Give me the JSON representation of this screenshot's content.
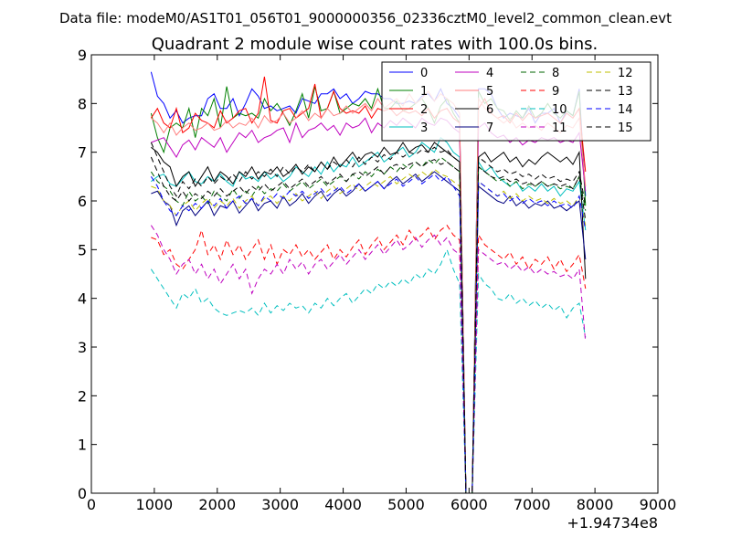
{
  "file_label": "Data file: modeM0/AS1T01_056T01_9000000356_02336cztM0_level2_common_clean.evt",
  "chart_data": {
    "type": "line",
    "title": "Quadrant 2 module wise count rates with 100.0s bins.",
    "xlabel": "",
    "ylabel": "",
    "x_offset_label": "+1.94734e8",
    "xlim": [
      0,
      9000
    ],
    "ylim": [
      0,
      9
    ],
    "x_ticks": [
      "0",
      "1000",
      "2000",
      "3000",
      "4000",
      "5000",
      "6000",
      "7000",
      "8000",
      "9000"
    ],
    "y_ticks": [
      "0",
      "1",
      "2",
      "3",
      "4",
      "5",
      "6",
      "7",
      "8",
      "9"
    ],
    "x_start": 950,
    "x_step": 100,
    "series": [
      {
        "name": "0",
        "color": "#0000ff",
        "dash": "solid",
        "values": [
          8.65,
          8.15,
          8.0,
          7.7,
          7.85,
          7.6,
          7.7,
          7.75,
          7.75,
          8.1,
          8.2,
          7.9,
          7.9,
          8.1,
          7.75,
          8.0,
          8.3,
          8.15,
          7.9,
          7.95,
          7.85,
          7.9,
          7.95,
          7.8,
          8.1,
          8.05,
          8.0,
          8.2,
          8.2,
          8.3,
          8.1,
          8.2,
          8.0,
          8.1,
          8.25,
          8.2,
          8.2,
          8.1,
          8.1,
          8.0,
          8.0,
          8.05,
          8.0,
          8.15,
          8.2,
          8.05,
          8.3,
          8.0,
          7.9,
          7.7,
          0.0,
          0.0,
          8.3,
          8.3,
          8.2,
          7.9,
          7.7,
          7.8,
          7.75,
          7.7,
          7.9,
          7.6,
          7.8,
          7.8,
          7.9,
          7.6,
          7.85,
          7.75,
          8.3,
          6.1
        ]
      },
      {
        "name": "1",
        "color": "#008000",
        "dash": "solid",
        "values": [
          7.8,
          7.3,
          7.0,
          7.5,
          7.6,
          7.5,
          7.9,
          7.3,
          7.9,
          7.75,
          8.1,
          7.5,
          8.35,
          7.7,
          7.8,
          7.75,
          7.8,
          7.7,
          8.1,
          7.85,
          8.0,
          7.8,
          7.55,
          7.85,
          8.2,
          7.7,
          8.35,
          7.85,
          7.9,
          8.25,
          7.8,
          7.9,
          8.0,
          7.95,
          8.1,
          7.9,
          8.3,
          7.9,
          7.9,
          8.05,
          7.85,
          7.9,
          8.0,
          8.1,
          7.9,
          7.6,
          7.95,
          8.1,
          7.8,
          7.6,
          0.0,
          0.0,
          8.25,
          8.0,
          8.1,
          7.9,
          7.85,
          7.65,
          7.85,
          7.7,
          7.95,
          7.7,
          7.8,
          8.0,
          7.8,
          7.7,
          7.85,
          7.75,
          8.25,
          5.9
        ]
      },
      {
        "name": "2",
        "color": "#ff0000",
        "dash": "solid",
        "values": [
          7.7,
          7.9,
          7.6,
          7.5,
          7.9,
          7.4,
          7.5,
          7.8,
          7.65,
          7.6,
          7.5,
          7.85,
          7.6,
          7.7,
          7.85,
          7.9,
          7.6,
          7.8,
          8.55,
          7.65,
          7.6,
          7.85,
          7.9,
          7.7,
          7.8,
          7.9,
          8.4,
          7.7,
          7.9,
          8.25,
          7.9,
          7.8,
          7.85,
          7.8,
          7.95,
          7.7,
          7.9,
          7.85,
          7.9,
          7.75,
          7.85,
          7.8,
          7.85,
          7.75,
          7.9,
          7.7,
          7.85,
          7.9,
          7.7,
          7.6,
          0.0,
          0.0,
          7.9,
          8.1,
          7.8,
          7.7,
          7.75,
          7.6,
          7.8,
          7.65,
          7.8,
          7.7,
          7.75,
          7.8,
          7.7,
          7.6,
          7.8,
          7.7,
          7.9,
          6.6
        ]
      },
      {
        "name": "3",
        "color": "#00bfbf",
        "dash": "solid",
        "values": [
          6.4,
          6.5,
          6.55,
          6.35,
          6.3,
          6.45,
          6.6,
          6.4,
          6.35,
          6.5,
          6.4,
          6.55,
          6.4,
          6.3,
          6.6,
          6.45,
          6.5,
          6.4,
          6.6,
          6.45,
          6.55,
          6.4,
          6.5,
          6.7,
          6.6,
          6.5,
          6.7,
          6.55,
          6.8,
          6.6,
          6.75,
          6.7,
          6.9,
          6.7,
          6.8,
          6.9,
          7.0,
          6.8,
          6.9,
          7.0,
          7.1,
          6.9,
          7.0,
          7.2,
          7.1,
          7.0,
          7.3,
          7.2,
          7.0,
          6.9,
          0.0,
          0.0,
          6.8,
          6.6,
          6.7,
          6.5,
          6.4,
          6.3,
          6.4,
          6.2,
          6.3,
          6.2,
          6.35,
          6.2,
          6.3,
          6.1,
          6.25,
          6.2,
          6.4,
          5.4
        ]
      },
      {
        "name": "4",
        "color": "#bf00bf",
        "dash": "solid",
        "values": [
          7.2,
          7.25,
          7.3,
          7.1,
          6.9,
          7.15,
          7.25,
          7.05,
          7.3,
          7.2,
          7.1,
          7.3,
          7.0,
          7.2,
          7.4,
          7.3,
          7.45,
          7.2,
          7.3,
          7.35,
          7.45,
          7.5,
          7.2,
          7.6,
          7.3,
          7.45,
          7.5,
          7.6,
          7.45,
          7.55,
          7.35,
          7.6,
          7.5,
          7.55,
          7.7,
          7.4,
          7.6,
          7.5,
          7.65,
          7.55,
          7.7,
          7.6,
          7.5,
          7.7,
          7.6,
          7.55,
          7.7,
          7.65,
          7.5,
          7.4,
          0.0,
          0.0,
          7.5,
          7.6,
          7.4,
          7.3,
          7.35,
          7.2,
          7.3,
          7.15,
          7.25,
          7.2,
          7.3,
          7.25,
          7.3,
          7.2,
          7.25,
          7.2,
          7.4,
          6.2
        ]
      },
      {
        "name": "5",
        "color": "#ff7f7f",
        "dash": "solid",
        "values": [
          7.7,
          7.6,
          7.4,
          7.6,
          7.35,
          7.5,
          7.6,
          7.45,
          7.5,
          7.6,
          7.45,
          7.5,
          7.65,
          7.5,
          7.6,
          7.55,
          7.7,
          7.5,
          7.75,
          7.6,
          7.65,
          7.8,
          7.6,
          7.7,
          7.85,
          7.65,
          7.8,
          7.7,
          7.9,
          7.75,
          7.8,
          7.95,
          7.8,
          7.9,
          8.0,
          7.85,
          8.1,
          7.9,
          8.0,
          8.1,
          7.95,
          8.2,
          8.0,
          8.1,
          8.25,
          8.05,
          8.2,
          8.1,
          8.0,
          7.8,
          0.0,
          0.0,
          8.1,
          7.9,
          7.8,
          7.7,
          7.6,
          7.7,
          7.5,
          7.6,
          7.5,
          7.55,
          7.45,
          7.6,
          7.5,
          7.4,
          7.55,
          7.5,
          7.7,
          6.3
        ]
      },
      {
        "name": "6",
        "color": "#000000",
        "dash": "solid",
        "values": [
          7.1,
          7.0,
          6.8,
          6.7,
          6.3,
          6.5,
          6.6,
          6.3,
          6.5,
          6.7,
          6.4,
          6.6,
          6.5,
          6.35,
          6.6,
          6.5,
          6.7,
          6.45,
          6.6,
          6.55,
          6.7,
          6.5,
          6.6,
          6.75,
          6.55,
          6.7,
          6.6,
          6.8,
          6.65,
          6.9,
          6.7,
          6.85,
          7.0,
          6.8,
          6.95,
          7.0,
          6.9,
          7.1,
          6.95,
          7.0,
          7.2,
          7.0,
          7.1,
          7.15,
          7.0,
          7.2,
          7.1,
          7.0,
          6.9,
          6.8,
          0.0,
          0.0,
          6.9,
          7.0,
          6.8,
          6.9,
          7.0,
          6.8,
          6.9,
          6.7,
          6.85,
          6.75,
          6.9,
          7.0,
          6.9,
          6.8,
          6.9,
          6.75,
          7.0,
          4.4
        ]
      },
      {
        "name": "7",
        "color": "#00007f",
        "dash": "solid",
        "values": [
          6.15,
          6.2,
          6.0,
          5.9,
          5.5,
          5.8,
          5.9,
          5.7,
          5.85,
          6.0,
          5.7,
          5.9,
          5.85,
          6.0,
          5.75,
          5.9,
          6.05,
          5.8,
          5.95,
          6.0,
          5.85,
          6.1,
          5.9,
          6.0,
          6.15,
          5.95,
          6.1,
          6.2,
          6.0,
          6.15,
          6.25,
          6.1,
          6.2,
          6.35,
          6.2,
          6.3,
          6.4,
          6.25,
          6.4,
          6.5,
          6.35,
          6.45,
          6.55,
          6.4,
          6.5,
          6.6,
          6.5,
          6.4,
          6.3,
          6.2,
          0.0,
          0.0,
          6.3,
          6.2,
          6.1,
          6.0,
          5.95,
          6.1,
          5.9,
          6.0,
          5.85,
          5.95,
          5.9,
          6.0,
          5.85,
          5.9,
          5.8,
          5.9,
          6.0,
          4.8
        ]
      },
      {
        "name": "8",
        "color": "#006400",
        "dash": "dashed",
        "values": [
          6.6,
          6.4,
          6.3,
          6.2,
          6.0,
          5.9,
          6.2,
          6.0,
          6.1,
          5.95,
          6.2,
          6.1,
          6.0,
          6.25,
          6.05,
          6.2,
          6.1,
          6.3,
          6.15,
          6.25,
          6.2,
          6.35,
          6.2,
          6.3,
          6.4,
          6.25,
          6.35,
          6.45,
          6.3,
          6.4,
          6.5,
          6.4,
          6.55,
          6.45,
          6.6,
          6.5,
          6.65,
          6.55,
          6.7,
          6.6,
          6.75,
          6.65,
          6.8,
          6.7,
          6.85,
          6.75,
          6.9,
          6.8,
          6.7,
          6.6,
          0.0,
          0.0,
          6.7,
          6.6,
          6.5,
          6.4,
          6.45,
          6.3,
          6.4,
          6.25,
          6.35,
          6.3,
          6.4,
          6.3,
          6.35,
          6.25,
          6.3,
          6.25,
          6.5,
          5.8
        ]
      },
      {
        "name": "9",
        "color": "#ff0000",
        "dash": "dashed",
        "values": [
          5.25,
          5.2,
          4.9,
          5.0,
          4.7,
          4.6,
          4.8,
          5.0,
          5.4,
          4.9,
          5.1,
          4.8,
          5.2,
          4.9,
          5.1,
          4.8,
          5.0,
          5.2,
          4.8,
          5.1,
          4.7,
          5.0,
          4.9,
          5.1,
          4.85,
          5.0,
          4.8,
          4.95,
          5.1,
          4.8,
          5.0,
          4.85,
          5.05,
          5.2,
          4.9,
          5.1,
          5.25,
          5.0,
          5.15,
          5.3,
          5.1,
          5.4,
          5.2,
          5.3,
          5.45,
          5.2,
          5.4,
          5.5,
          5.3,
          5.2,
          0.0,
          0.0,
          5.3,
          5.1,
          5.0,
          4.9,
          4.8,
          4.95,
          4.7,
          4.85,
          4.6,
          4.8,
          4.7,
          4.85,
          4.6,
          4.8,
          4.55,
          4.7,
          4.9,
          4.2
        ]
      },
      {
        "name": "10",
        "color": "#00bfbf",
        "dash": "dashed",
        "values": [
          4.6,
          4.4,
          4.2,
          4.0,
          3.8,
          4.1,
          4.0,
          4.2,
          3.9,
          4.0,
          3.8,
          3.7,
          3.65,
          3.7,
          3.75,
          3.7,
          3.8,
          3.65,
          3.9,
          3.7,
          3.85,
          3.75,
          3.9,
          3.8,
          3.85,
          3.7,
          3.9,
          3.8,
          4.0,
          3.85,
          4.0,
          4.1,
          3.9,
          4.05,
          4.2,
          4.1,
          4.3,
          4.2,
          4.35,
          4.25,
          4.4,
          4.3,
          4.5,
          4.4,
          4.6,
          4.5,
          4.7,
          5.0,
          4.6,
          4.3,
          0.0,
          0.0,
          4.5,
          4.3,
          4.2,
          4.0,
          3.95,
          4.1,
          3.9,
          4.0,
          3.85,
          3.95,
          3.8,
          3.9,
          3.75,
          3.85,
          3.6,
          3.8,
          3.9,
          3.2
        ]
      },
      {
        "name": "11",
        "color": "#bf00bf",
        "dash": "dashed",
        "values": [
          5.5,
          5.3,
          5.0,
          4.8,
          4.5,
          4.7,
          4.8,
          4.5,
          4.7,
          4.4,
          4.6,
          4.3,
          4.5,
          4.7,
          4.4,
          4.6,
          4.1,
          4.4,
          4.6,
          4.5,
          4.7,
          4.5,
          4.8,
          4.6,
          4.75,
          4.5,
          4.7,
          4.8,
          4.6,
          4.75,
          4.9,
          4.7,
          4.85,
          5.0,
          4.8,
          4.95,
          5.1,
          4.9,
          5.05,
          5.2,
          5.0,
          5.1,
          5.25,
          5.05,
          5.2,
          5.3,
          5.1,
          5.25,
          5.0,
          4.9,
          0.0,
          0.0,
          5.0,
          4.9,
          4.8,
          4.7,
          4.75,
          4.6,
          4.7,
          4.55,
          4.65,
          4.5,
          4.6,
          4.5,
          4.55,
          4.45,
          4.5,
          4.4,
          4.6,
          3.1
        ]
      },
      {
        "name": "12",
        "color": "#bfbf00",
        "dash": "dashed",
        "values": [
          6.3,
          6.25,
          6.0,
          5.9,
          5.7,
          5.9,
          6.0,
          5.8,
          5.95,
          6.05,
          5.85,
          6.0,
          5.9,
          6.05,
          5.85,
          6.0,
          6.1,
          5.9,
          6.05,
          6.1,
          5.95,
          6.1,
          6.0,
          6.15,
          6.0,
          6.1,
          6.2,
          6.05,
          6.2,
          6.3,
          6.15,
          6.25,
          6.35,
          6.2,
          6.3,
          6.4,
          6.3,
          6.4,
          6.5,
          6.35,
          6.45,
          6.55,
          6.45,
          6.6,
          6.5,
          6.65,
          6.55,
          6.5,
          6.4,
          6.3,
          0.0,
          0.0,
          6.4,
          6.3,
          6.2,
          6.1,
          6.2,
          6.05,
          6.15,
          6.0,
          6.1,
          6.0,
          6.05,
          5.95,
          6.05,
          5.95,
          6.0,
          5.9,
          6.1,
          5.5
        ]
      },
      {
        "name": "13",
        "color": "#000000",
        "dash": "dashed",
        "values": [
          6.9,
          6.6,
          6.3,
          6.1,
          6.0,
          6.2,
          6.0,
          6.15,
          6.05,
          6.2,
          6.1,
          6.25,
          6.1,
          6.2,
          6.3,
          6.15,
          6.3,
          6.2,
          6.35,
          6.2,
          6.3,
          6.4,
          6.25,
          6.35,
          6.45,
          6.3,
          6.4,
          6.5,
          6.35,
          6.45,
          6.55,
          6.4,
          6.55,
          6.6,
          6.5,
          6.6,
          6.7,
          6.55,
          6.7,
          6.75,
          6.65,
          6.75,
          6.8,
          6.7,
          6.8,
          6.85,
          6.75,
          6.8,
          6.7,
          6.6,
          0.0,
          0.0,
          6.7,
          6.6,
          6.5,
          6.45,
          6.5,
          6.4,
          6.45,
          6.35,
          6.4,
          6.3,
          6.4,
          6.3,
          6.35,
          6.3,
          6.35,
          6.25,
          6.5,
          5.6
        ]
      },
      {
        "name": "14",
        "color": "#0000ff",
        "dash": "dashed",
        "values": [
          6.5,
          6.3,
          6.0,
          5.8,
          5.7,
          5.9,
          5.8,
          5.95,
          5.85,
          6.0,
          5.9,
          6.05,
          5.85,
          6.0,
          6.1,
          5.95,
          6.05,
          5.9,
          6.1,
          6.0,
          6.15,
          6.05,
          6.2,
          6.1,
          6.2,
          6.05,
          6.15,
          6.25,
          6.1,
          6.2,
          6.3,
          6.15,
          6.25,
          6.35,
          6.2,
          6.3,
          6.4,
          6.25,
          6.35,
          6.45,
          6.3,
          6.4,
          6.5,
          6.35,
          6.45,
          6.55,
          6.4,
          6.5,
          6.3,
          6.1,
          0.0,
          0.0,
          6.4,
          6.3,
          6.2,
          6.1,
          6.15,
          6.0,
          6.1,
          5.95,
          6.05,
          5.95,
          6.0,
          5.9,
          6.0,
          5.9,
          5.95,
          5.85,
          6.1,
          5.4
        ]
      },
      {
        "name": "15",
        "color": "#000000",
        "dash": "dashed",
        "values": [
          7.2,
          6.9,
          6.6,
          6.3,
          6.1,
          6.4,
          6.25,
          6.45,
          6.3,
          6.5,
          6.35,
          6.5,
          6.4,
          6.55,
          6.4,
          6.6,
          6.45,
          6.6,
          6.5,
          6.65,
          6.5,
          6.7,
          6.55,
          6.7,
          6.6,
          6.75,
          6.6,
          6.8,
          6.65,
          6.8,
          6.7,
          6.85,
          6.7,
          6.9,
          6.75,
          6.9,
          6.8,
          6.95,
          6.85,
          7.0,
          6.9,
          7.0,
          6.95,
          7.05,
          7.0,
          7.1,
          7.0,
          7.05,
          6.9,
          6.8,
          0.0,
          0.0,
          6.9,
          6.8,
          6.7,
          6.6,
          6.65,
          6.55,
          6.6,
          6.5,
          6.55,
          6.45,
          6.55,
          6.45,
          6.5,
          6.4,
          6.45,
          6.4,
          6.6,
          5.9
        ]
      }
    ]
  }
}
